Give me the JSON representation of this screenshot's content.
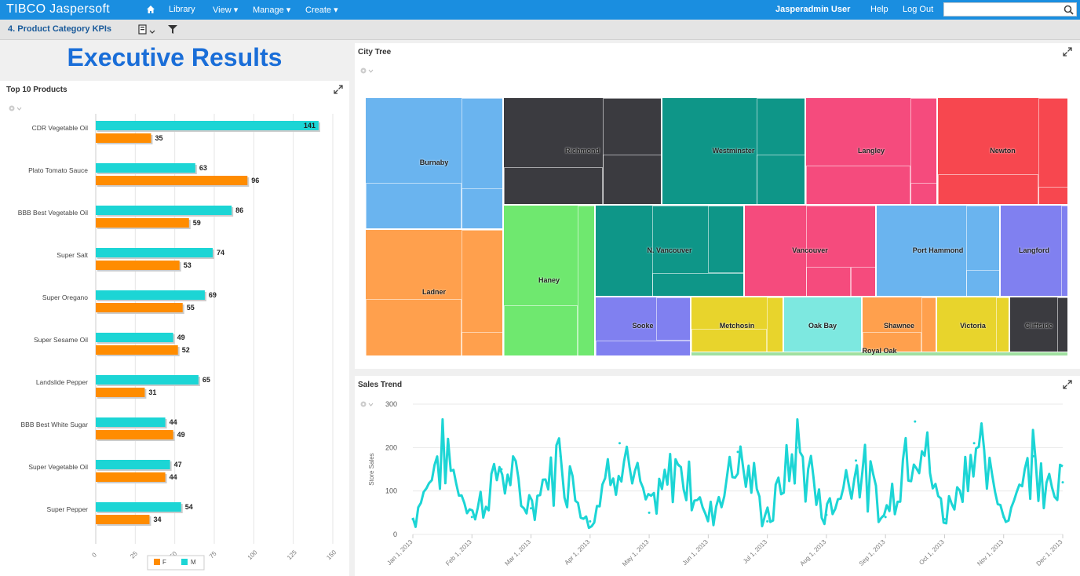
{
  "app": {
    "logo_brand": "TIBCO",
    "logo_product": "Jaspersoft",
    "nav": [
      "Library",
      "View ▾",
      "Manage ▾",
      "Create ▾"
    ],
    "user": "Jasperadmin User",
    "help": "Help",
    "logout": "Log Out",
    "search_placeholder": ""
  },
  "report": {
    "title": "4. Product Category KPIs"
  },
  "dashboard": {
    "heading": "Executive Results",
    "top10_title": "Top 10 Products",
    "city_tree_title": "City Tree",
    "sales_trend_title": "Sales Trend"
  },
  "colors": {
    "topbar": "#1a8ee0",
    "series_f": "#ff8c00",
    "series_m": "#1cd5d5",
    "heading": "#1a6ed8"
  },
  "chart_data": [
    {
      "type": "bar",
      "orientation": "horizontal",
      "title": "Top 10 Products",
      "categories": [
        "CDR Vegetable Oil",
        "Plato Tomato Sauce",
        "BBB Best Vegetable Oil",
        "Super Salt",
        "Super Oregano",
        "Super Sesame Oil",
        "Landslide Pepper",
        "BBB Best White Sugar",
        "Super Vegetable Oil",
        "Super Pepper"
      ],
      "series": [
        {
          "name": "M",
          "color": "#1cd5d5",
          "values": [
            141,
            63,
            86,
            74,
            69,
            49,
            65,
            44,
            47,
            54
          ]
        },
        {
          "name": "F",
          "color": "#ff8c00",
          "values": [
            35,
            96,
            59,
            53,
            55,
            52,
            31,
            49,
            44,
            34
          ]
        }
      ],
      "xlim": [
        0,
        150
      ],
      "xticks": [
        "0",
        "25",
        "50",
        "75",
        "100",
        "125",
        "150"
      ],
      "legend": "bottom",
      "grid": true
    },
    {
      "type": "treemap",
      "title": "City Tree",
      "cells": [
        {
          "label": "Burnaby",
          "color": "#6ab4ef"
        },
        {
          "label": "Richmond",
          "color": "#3b3b40"
        },
        {
          "label": "Westminster",
          "color": "#0e9688"
        },
        {
          "label": "Langley",
          "color": "#f54b7d"
        },
        {
          "label": "Newton",
          "color": "#f7474f"
        },
        {
          "label": "Ladner",
          "color": "#ffa04d"
        },
        {
          "label": "Haney",
          "color": "#6fe86f"
        },
        {
          "label": "N. Vancouver",
          "color": "#0e9688"
        },
        {
          "label": "Vancouver",
          "color": "#f54b7d"
        },
        {
          "label": "Port Hammond",
          "color": "#6ab4ef"
        },
        {
          "label": "Langford",
          "color": "#8080f0"
        },
        {
          "label": "Sooke",
          "color": "#8080f0"
        },
        {
          "label": "Metchosin",
          "color": "#e8d42c"
        },
        {
          "label": "Oak Bay",
          "color": "#7de8e0"
        },
        {
          "label": "Shawnee",
          "color": "#ffa04d"
        },
        {
          "label": "Victoria",
          "color": "#e8d42c"
        },
        {
          "label": "Cliffside",
          "color": "#3b3b40"
        },
        {
          "label": "Royal Oak",
          "color": "#a0e0a0"
        }
      ]
    },
    {
      "type": "line",
      "title": "Sales Trend",
      "ylabel": "Store Sales",
      "ylim": [
        0,
        300
      ],
      "yticks": [
        "0",
        "100",
        "200",
        "300"
      ],
      "xticks": [
        "Jan 1, 2013",
        "Feb 1, 2013",
        "Mar 1, 2013",
        "Apr 1, 2013",
        "May 1, 2013",
        "Jun 1, 2013",
        "Jul 1, 2013",
        "Aug 1, 2013",
        "Sep 1, 2013",
        "Oct 1, 2013",
        "Nov 1, 2013",
        "Dec 1, 2013"
      ],
      "color": "#1cd5d5",
      "grid": true,
      "x": [
        "Jan 1, 2013",
        "Jan 15, 2013",
        "Feb 1, 2013",
        "Feb 15, 2013",
        "Mar 1, 2013",
        "Mar 15, 2013",
        "Apr 1, 2013",
        "Apr 15, 2013",
        "May 1, 2013",
        "May 15, 2013",
        "Jun 1, 2013",
        "Jun 15, 2013",
        "Jul 1, 2013",
        "Jul 15, 2013",
        "Aug 1, 2013",
        "Aug 15, 2013",
        "Sep 1, 2013",
        "Sep 15, 2013",
        "Oct 1, 2013",
        "Oct 15, 2013",
        "Nov 1, 2013",
        "Nov 15, 2013",
        "Dec 1, 2013"
      ],
      "values": [
        35,
        200,
        40,
        150,
        60,
        180,
        30,
        210,
        50,
        160,
        40,
        190,
        30,
        200,
        45,
        170,
        40,
        260,
        35,
        210,
        40,
        180,
        120
      ]
    }
  ]
}
